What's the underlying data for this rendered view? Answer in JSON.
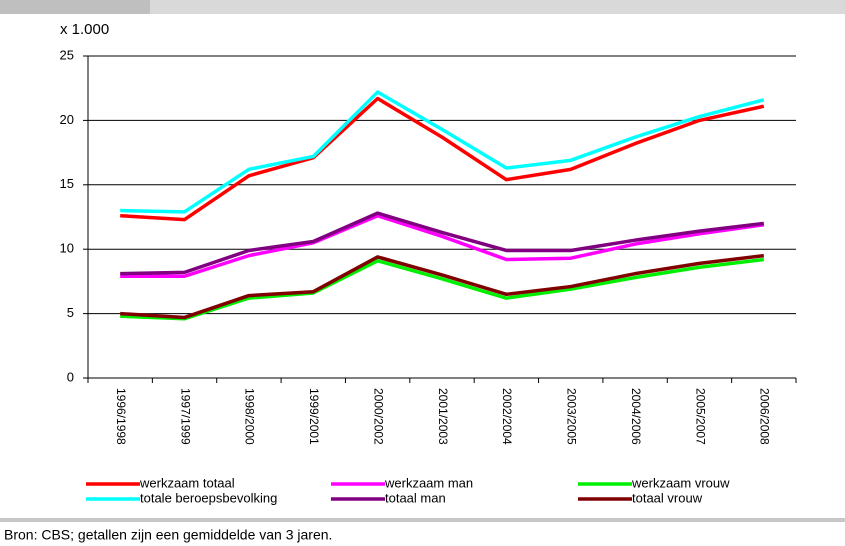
{
  "chart_data": {
    "type": "line",
    "y_unit": "x 1.000",
    "categories": [
      "1996/1998",
      "1997/1999",
      "1998/2000",
      "1999/2001",
      "2000/2002",
      "2001/2003",
      "2002/2004",
      "2003/2005",
      "2004/2006",
      "2005/2007",
      "2006/2008"
    ],
    "series": [
      {
        "name": "werkzaam totaal",
        "color": "#ff0000",
        "values": [
          12.6,
          12.3,
          15.7,
          17.1,
          21.7,
          18.7,
          15.4,
          16.2,
          18.2,
          20.0,
          21.1
        ]
      },
      {
        "name": "werkzaam man",
        "color": "#ff00ff",
        "values": [
          7.9,
          7.9,
          9.5,
          10.5,
          12.6,
          11.0,
          9.2,
          9.3,
          10.4,
          11.2,
          11.9
        ]
      },
      {
        "name": "werkzaam vrouw",
        "color": "#00ee00",
        "values": [
          4.8,
          4.6,
          6.2,
          6.6,
          9.1,
          7.7,
          6.2,
          6.9,
          7.8,
          8.6,
          9.2
        ]
      },
      {
        "name": "totale beroepsbevolking",
        "color": "#00ffff",
        "values": [
          13.0,
          12.9,
          16.2,
          17.2,
          22.2,
          19.3,
          16.3,
          16.9,
          18.7,
          20.3,
          21.6
        ]
      },
      {
        "name": "totaal man",
        "color": "#800080",
        "values": [
          8.1,
          8.2,
          9.9,
          10.6,
          12.8,
          11.3,
          9.9,
          9.9,
          10.7,
          11.4,
          12.0
        ]
      },
      {
        "name": "totaal vrouw",
        "color": "#800000",
        "values": [
          5.0,
          4.7,
          6.4,
          6.7,
          9.4,
          8.0,
          6.5,
          7.1,
          8.1,
          8.9,
          9.5
        ]
      }
    ],
    "ylim": [
      0,
      25
    ],
    "yticks": [
      0,
      5,
      10,
      15,
      20,
      25
    ],
    "grid": true
  },
  "source": "Bron: CBS; getallen zijn een gemiddelde van 3 jaren."
}
